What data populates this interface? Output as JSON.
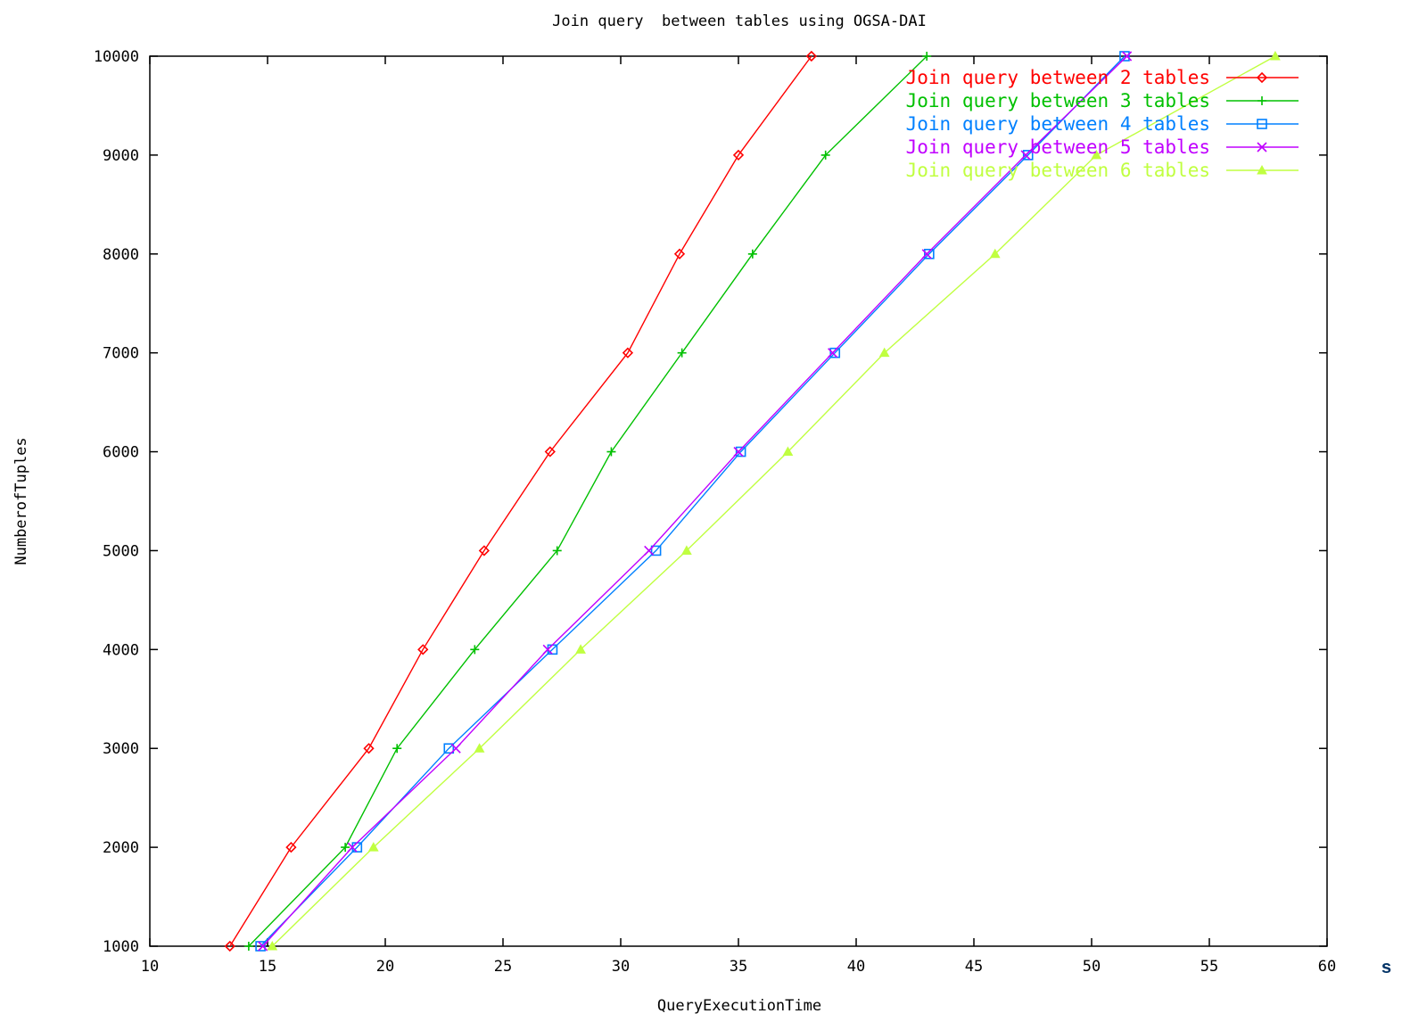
{
  "chart_data": {
    "type": "line",
    "title": "Join query  between tables using OGSA-DAI",
    "xlabel": "QueryExecutionTime",
    "ylabel": "NumberofTuples",
    "xlim": [
      10,
      60
    ],
    "ylim": [
      1000,
      10000
    ],
    "xticks": [
      10,
      15,
      20,
      25,
      30,
      35,
      40,
      45,
      50,
      55,
      60
    ],
    "yticks": [
      1000,
      2000,
      3000,
      4000,
      5000,
      6000,
      7000,
      8000,
      9000,
      10000
    ],
    "grid": false,
    "legend_position": "top-right",
    "series": [
      {
        "name": "Join query between 2 tables",
        "color": "#ff0000",
        "marker": "diamond",
        "points": [
          [
            13.4,
            1000
          ],
          [
            16,
            2000
          ],
          [
            19.3,
            3000
          ],
          [
            21.6,
            4000
          ],
          [
            24.2,
            5000
          ],
          [
            27,
            6000
          ],
          [
            30.3,
            7000
          ],
          [
            32.5,
            8000
          ],
          [
            35,
            9000
          ],
          [
            38.1,
            10000
          ]
        ]
      },
      {
        "name": "Join query between 3 tables",
        "color": "#00c000",
        "marker": "plus",
        "points": [
          [
            14.2,
            1000
          ],
          [
            18.3,
            2000
          ],
          [
            20.5,
            3000
          ],
          [
            23.8,
            4000
          ],
          [
            27.3,
            5000
          ],
          [
            29.6,
            6000
          ],
          [
            32.6,
            7000
          ],
          [
            35.6,
            8000
          ],
          [
            38.7,
            9000
          ],
          [
            43,
            10000
          ]
        ]
      },
      {
        "name": "Join query between 4 tables",
        "color": "#0080ff",
        "marker": "square",
        "points": [
          [
            14.7,
            1000
          ],
          [
            18.8,
            2000
          ],
          [
            22.7,
            3000
          ],
          [
            27.1,
            4000
          ],
          [
            31.5,
            5000
          ],
          [
            35.1,
            6000
          ],
          [
            39.1,
            7000
          ],
          [
            43.1,
            8000
          ],
          [
            47.3,
            9000
          ],
          [
            51.4,
            10000
          ]
        ]
      },
      {
        "name": "Join query between 5 tables",
        "color": "#c000ff",
        "marker": "cross",
        "points": [
          [
            14.8,
            1000
          ],
          [
            18.6,
            2000
          ],
          [
            23,
            3000
          ],
          [
            26.9,
            4000
          ],
          [
            31.2,
            5000
          ],
          [
            35,
            6000
          ],
          [
            39,
            7000
          ],
          [
            43,
            8000
          ],
          [
            47.2,
            9000
          ],
          [
            51.5,
            10000
          ]
        ]
      },
      {
        "name": "Join query between 6 tables",
        "color": "#c0ff40",
        "marker": "triangle",
        "points": [
          [
            15.2,
            1000
          ],
          [
            19.5,
            2000
          ],
          [
            24,
            3000
          ],
          [
            28.3,
            4000
          ],
          [
            32.8,
            5000
          ],
          [
            37.1,
            6000
          ],
          [
            41.2,
            7000
          ],
          [
            45.9,
            8000
          ],
          [
            50.2,
            9000
          ],
          [
            57.8,
            10000
          ]
        ]
      }
    ]
  },
  "units_note": "s"
}
